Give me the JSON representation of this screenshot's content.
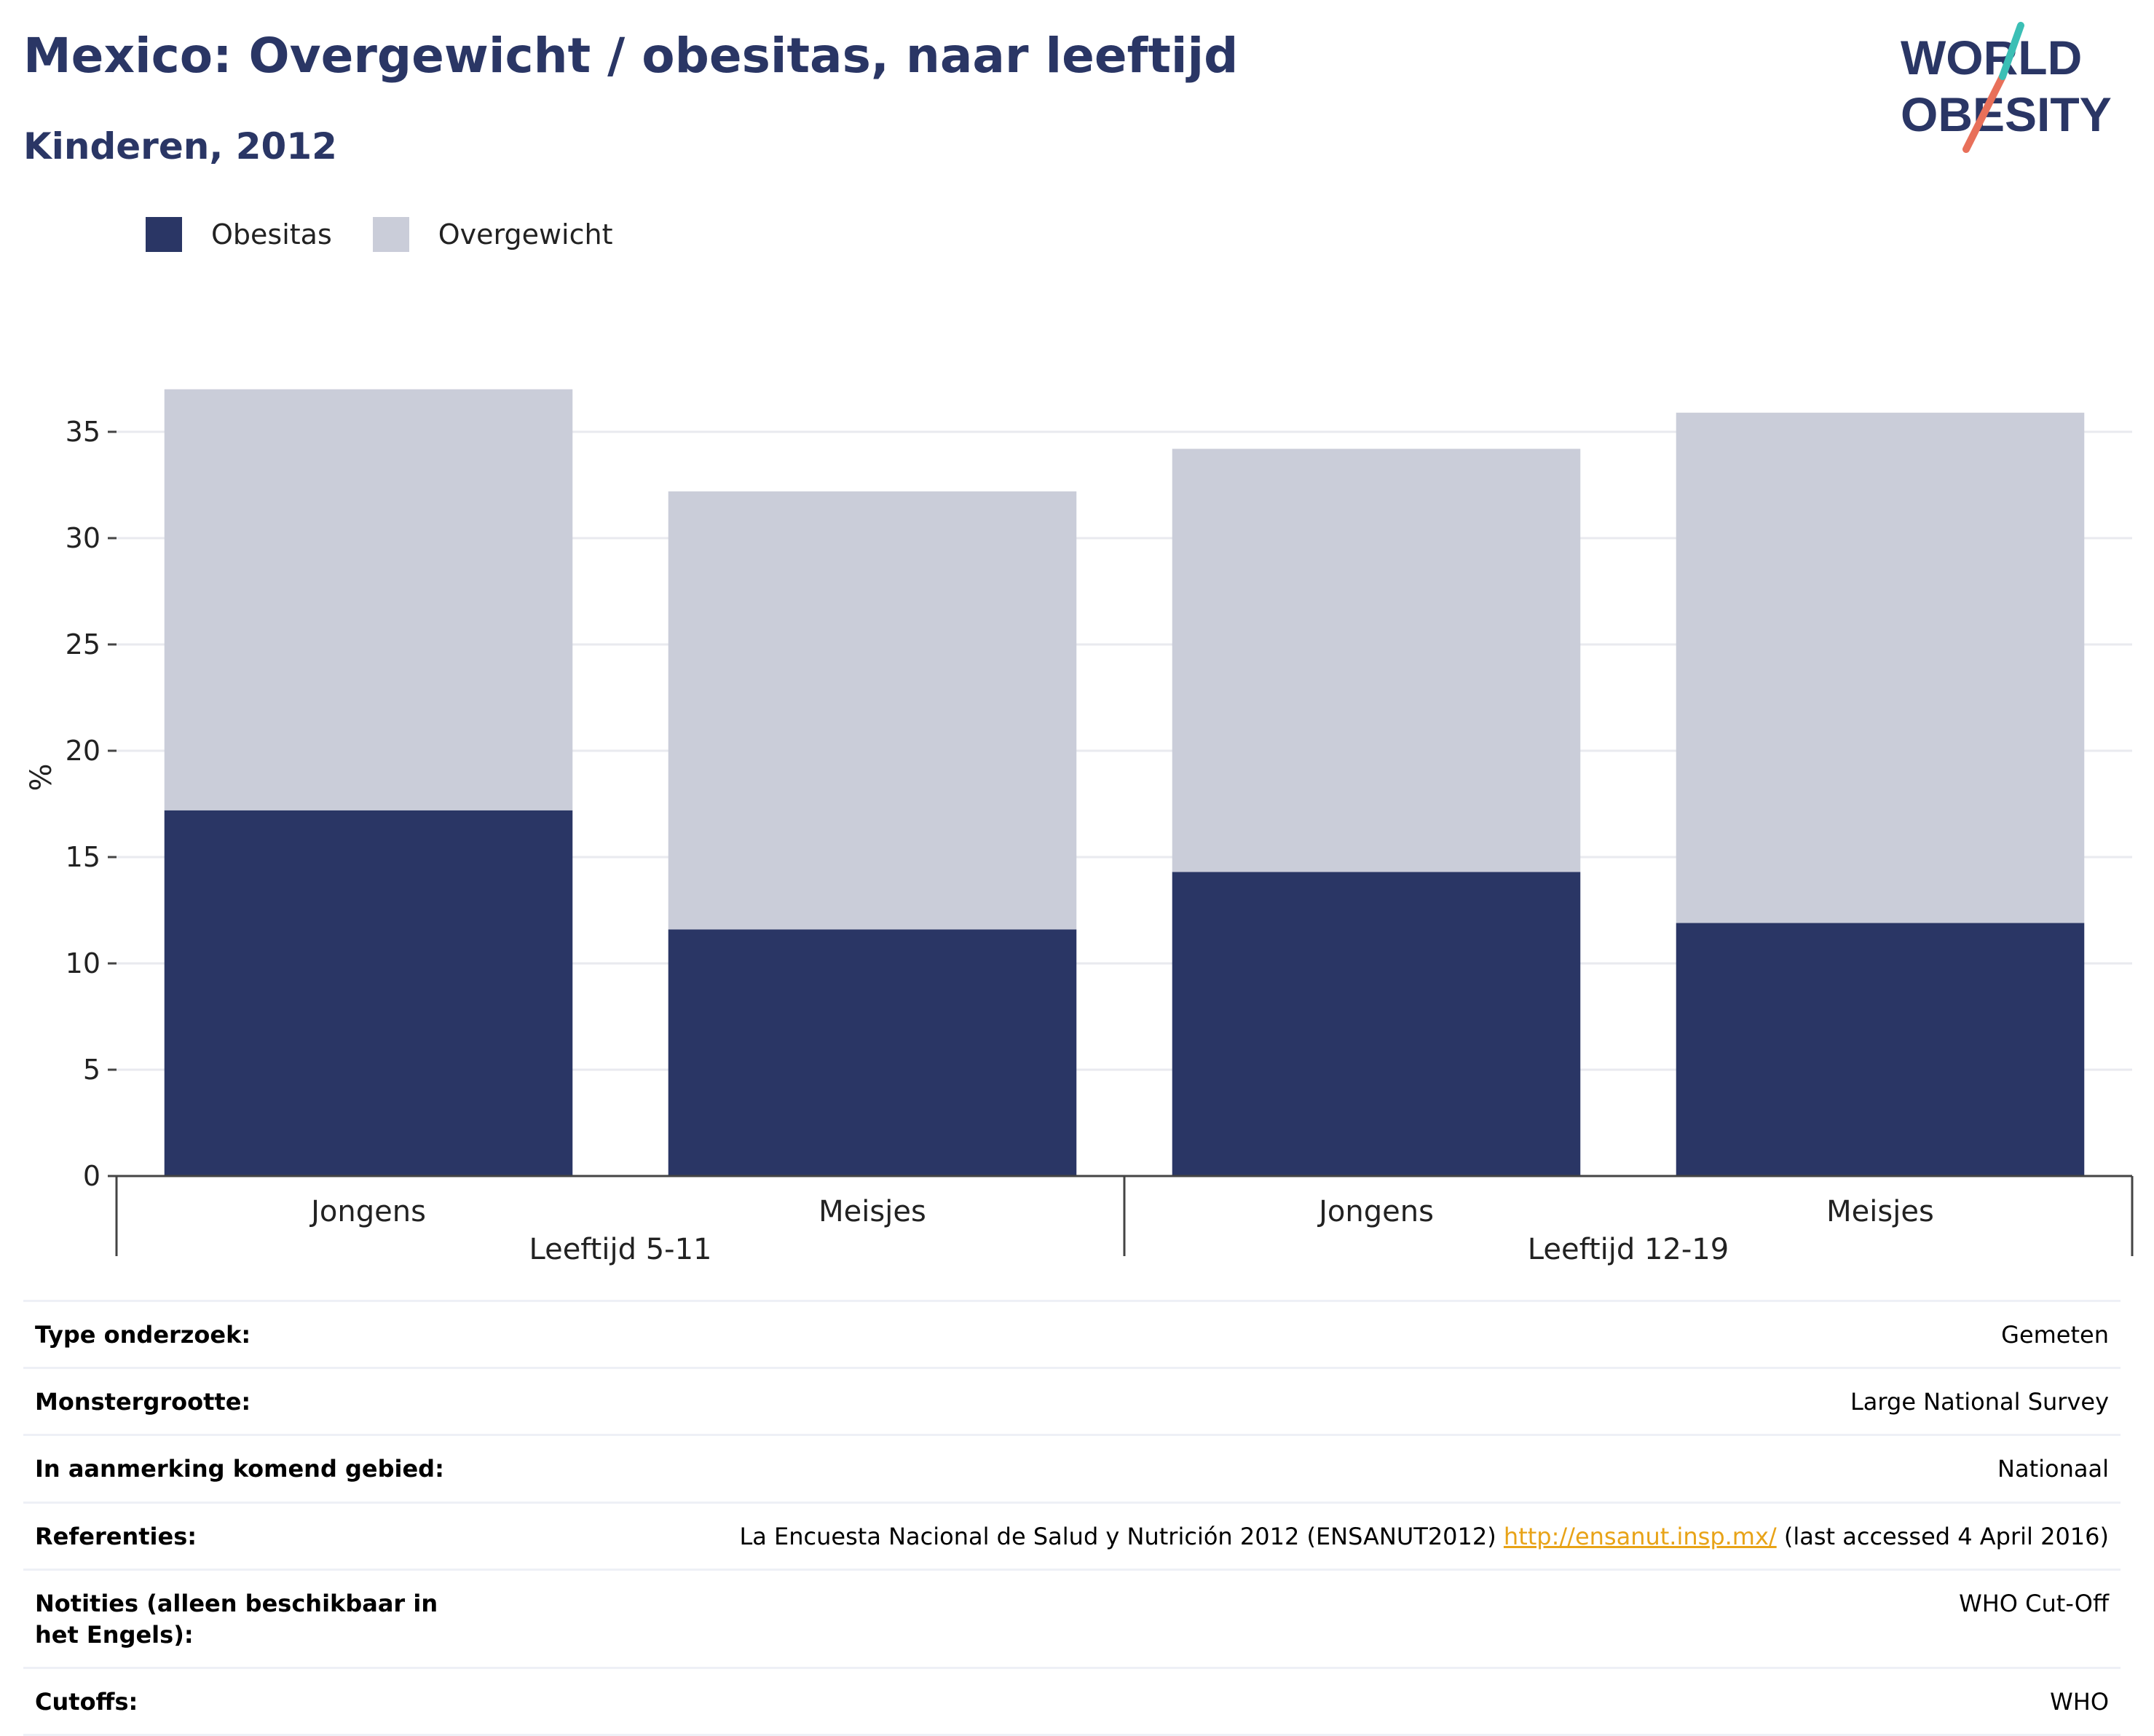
{
  "title": "Mexico: Overgewicht / obesitas, naar leeftijd",
  "subtitle": "Kinderen, 2012",
  "logo": {
    "line1": "WORLD",
    "line2": "OBESITY"
  },
  "legend": [
    {
      "label": "Obesitas",
      "color": "#2a3665"
    },
    {
      "label": "Overgewicht",
      "color": "#cacdd9"
    }
  ],
  "chart_data": {
    "type": "bar",
    "stacked": true,
    "categories": [
      "Jongens",
      "Meisjes",
      "Jongens",
      "Meisjes"
    ],
    "groups": [
      {
        "label": "Leeftijd 5-11",
        "categories": [
          0,
          1
        ]
      },
      {
        "label": "Leeftijd 12-19",
        "categories": [
          2,
          3
        ]
      }
    ],
    "series": [
      {
        "name": "Obesitas",
        "color": "#2a3665",
        "values": [
          17.2,
          11.6,
          14.3,
          11.9
        ]
      },
      {
        "name": "Overgewicht",
        "color": "#cacdd9",
        "values": [
          19.8,
          20.6,
          19.9,
          24.0
        ]
      }
    ],
    "ylabel": "%",
    "ylim": [
      0,
      37.5
    ],
    "yticks": [
      0,
      5,
      10,
      15,
      20,
      25,
      30,
      35
    ],
    "grid": true,
    "legend_position": "top-left"
  },
  "info": {
    "rows": [
      {
        "label": "Type onderzoek:",
        "value": "Gemeten"
      },
      {
        "label": "Monstergrootte:",
        "value": "Large National Survey"
      },
      {
        "label": "In aanmerking komend gebied:",
        "value": "Nationaal"
      },
      {
        "label": "Referenties:",
        "value_pre": "La Encuesta Nacional de Salud y Nutrición 2012 (ENSANUT2012) ",
        "link": "http://ensanut.insp.mx/",
        "value_post": " (last accessed 4 April 2016)"
      },
      {
        "label": "Notities (alleen beschikbaar in het Engels):",
        "value": "WHO Cut-Off"
      },
      {
        "label": "Cutoffs:",
        "value": "WHO"
      }
    ]
  }
}
